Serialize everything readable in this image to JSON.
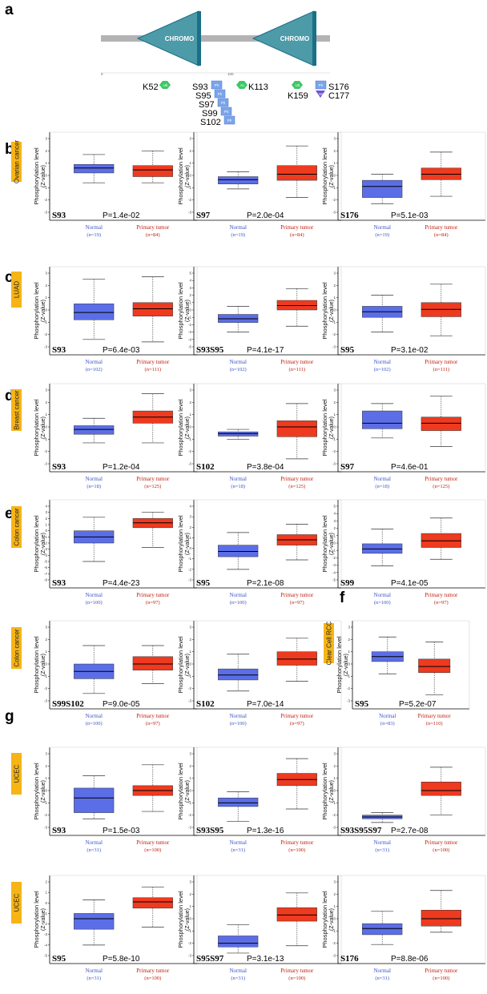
{
  "colors": {
    "normal_box": "#5b6ee8",
    "tumor_box": "#ee3a1f",
    "normal_text": "#3f55c8",
    "tumor_text": "#c0200e",
    "cancer_label_bg": "#f6b417",
    "domain_fill": "#4d9aa9",
    "domain_edge": "#1b6f86",
    "backbone": "#b3b3b3",
    "ub_mod": "#3cc866",
    "ph_mod": "#7ba4ea",
    "ac_mod": "#3cc866",
    "nt_mod": "#6f52d6"
  },
  "schematic": {
    "panel_letter": "a",
    "domain_label": "CHROMO",
    "ruler": [
      "0",
      "100"
    ],
    "sites": [
      {
        "mod": "Ub",
        "label": "K52"
      },
      {
        "mod": "Ph",
        "label": "S93"
      },
      {
        "mod": "Ph",
        "label": "S95"
      },
      {
        "mod": "Ph",
        "label": "S97"
      },
      {
        "mod": "Ph",
        "label": "S99"
      },
      {
        "mod": "Ph",
        "label": "S102"
      },
      {
        "mod": "Ac",
        "label": "K113"
      },
      {
        "mod": "Ub",
        "label": "K159"
      },
      {
        "mod": "Ph",
        "label": "S176"
      },
      {
        "mod": "Nt",
        "label": "C177"
      }
    ]
  },
  "ylabel_line1": "Phosphorylation level",
  "ylabel_line2": "(Z-value)",
  "groups": {
    "normal": "Normal",
    "tumor": "Primary tumor"
  },
  "panel_letters": [
    "b",
    "c",
    "d",
    "e",
    "f",
    "g"
  ],
  "cancer_labels": {
    "b": "Ovarian cancer",
    "c": "LUAD",
    "d": "Breast cancer",
    "e1": "Colon cancer",
    "e2": "Colon cancer",
    "f": "Clear Cell RCC",
    "g1": "UCEC",
    "g2": "UCEC"
  },
  "chart_data": [
    {
      "type": "box",
      "cancer": "Ovarian cancer",
      "site": "S93",
      "pvalue": "P=1.4e-02",
      "ylim": [
        -3,
        3
      ],
      "normal": {
        "n": "(n=19)",
        "whisker_low": -0.6,
        "q1": 0.2,
        "median": 0.6,
        "q3": 0.9,
        "whisker_high": 1.7
      },
      "tumor": {
        "n": "(n=84)",
        "whisker_low": -0.6,
        "q1": -0.1,
        "median": 0.45,
        "q3": 0.8,
        "whisker_high": 2.0
      }
    },
    {
      "type": "box",
      "cancer": "Ovarian cancer",
      "site": "S97",
      "pvalue": "P=2.0e-04",
      "ylim": [
        -3,
        3
      ],
      "normal": {
        "n": "(n=19)",
        "whisker_low": -1.1,
        "q1": -0.7,
        "median": -0.35,
        "q3": -0.1,
        "whisker_high": 0.3
      },
      "tumor": {
        "n": "(n=84)",
        "whisker_low": -1.8,
        "q1": -0.4,
        "median": 0.1,
        "q3": 0.8,
        "whisker_high": 2.4
      }
    },
    {
      "type": "box",
      "cancer": "Ovarian cancer",
      "site": "S176",
      "pvalue": "P=5.1e-03",
      "ylim": [
        -3,
        3
      ],
      "normal": {
        "n": "(n=19)",
        "whisker_low": -2.3,
        "q1": -1.8,
        "median": -0.9,
        "q3": -0.4,
        "whisker_high": 0.1
      },
      "tumor": {
        "n": "(n=84)",
        "whisker_low": -1.7,
        "q1": -0.35,
        "median": 0.1,
        "q3": 0.6,
        "whisker_high": 1.9
      }
    },
    {
      "type": "box",
      "cancer": "LUAD",
      "site": "S93",
      "pvalue": "P=6.4e-03",
      "ylim": [
        -3,
        3
      ],
      "normal": {
        "n": "(n=102)",
        "whisker_low": -2.4,
        "q1": -0.8,
        "median": -0.2,
        "q3": 0.5,
        "whisker_high": 2.5
      },
      "tumor": {
        "n": "(n=111)",
        "whisker_low": -2.6,
        "q1": -0.5,
        "median": 0.1,
        "q3": 0.6,
        "whisker_high": 2.7
      }
    },
    {
      "type": "box",
      "cancer": "LUAD",
      "site": "S93S95",
      "pvalue": "P=4.1e-17",
      "ylim": [
        -5,
        5
      ],
      "normal": {
        "n": "(n=102)",
        "whisker_low": -3.0,
        "q1": -1.7,
        "median": -1.2,
        "q3": -0.6,
        "whisker_high": 0.5
      },
      "tumor": {
        "n": "(n=111)",
        "whisker_low": -2.2,
        "q1": 0.0,
        "median": 0.6,
        "q3": 1.3,
        "whisker_high": 2.9
      }
    },
    {
      "type": "box",
      "cancer": "LUAD",
      "site": "S95",
      "pvalue": "P=3.1e-02",
      "ylim": [
        -3,
        3
      ],
      "normal": {
        "n": "(n=102)",
        "whisker_low": -1.8,
        "q1": -0.6,
        "median": -0.15,
        "q3": 0.3,
        "whisker_high": 1.2
      },
      "tumor": {
        "n": "(n=111)",
        "whisker_low": -2.1,
        "q1": -0.55,
        "median": 0.05,
        "q3": 0.6,
        "whisker_high": 2.1
      }
    },
    {
      "type": "box",
      "cancer": "Breast cancer",
      "site": "S93",
      "pvalue": "P=1.2e-04",
      "ylim": [
        -3,
        3
      ],
      "normal": {
        "n": "(n=18)",
        "whisker_low": -1.3,
        "q1": -0.6,
        "median": -0.2,
        "q3": 0.1,
        "whisker_high": 0.7
      },
      "tumor": {
        "n": "(n=125)",
        "whisker_low": -1.3,
        "q1": 0.3,
        "median": 0.8,
        "q3": 1.3,
        "whisker_high": 2.7
      }
    },
    {
      "type": "box",
      "cancer": "Breast cancer",
      "site": "S102",
      "pvalue": "P=3.8e-04",
      "ylim": [
        -3,
        3
      ],
      "normal": {
        "n": "(n=18)",
        "whisker_low": -1.0,
        "q1": -0.75,
        "median": -0.55,
        "q3": -0.4,
        "whisker_high": -0.2
      },
      "tumor": {
        "n": "(n=125)",
        "whisker_low": -2.6,
        "q1": -0.8,
        "median": 0.0,
        "q3": 0.5,
        "whisker_high": 1.9
      }
    },
    {
      "type": "box",
      "cancer": "Breast cancer",
      "site": "S97",
      "pvalue": "P=4.6e-01",
      "ylim": [
        -3,
        3
      ],
      "normal": {
        "n": "(n=18)",
        "whisker_low": -0.9,
        "q1": -0.15,
        "median": 0.3,
        "q3": 1.3,
        "whisker_high": 1.9
      },
      "tumor": {
        "n": "(n=125)",
        "whisker_low": -1.6,
        "q1": -0.3,
        "median": 0.3,
        "q3": 0.8,
        "whisker_high": 2.5
      }
    },
    {
      "type": "box",
      "cancer": "Colon cancer",
      "site": "S93",
      "pvalue": "P=4.4e-23",
      "ylim": [
        -8,
        4
      ],
      "normal": {
        "n": "(n=100)",
        "whisker_low": -5.0,
        "q1": -2.0,
        "median": -1.0,
        "q3": 0.0,
        "whisker_high": 2.2
      },
      "tumor": {
        "n": "(n=97)",
        "whisker_low": -2.7,
        "q1": 0.5,
        "median": 1.3,
        "q3": 2.0,
        "whisker_high": 3.0
      }
    },
    {
      "type": "box",
      "cancer": "Colon cancer",
      "site": "S95",
      "pvalue": "P=2.1e-08",
      "ylim": [
        -3,
        4
      ],
      "normal": {
        "n": "(n=100)",
        "whisker_low": -2.0,
        "q1": -0.8,
        "median": -0.3,
        "q3": 0.3,
        "whisker_high": 1.5
      },
      "tumor": {
        "n": "(n=97)",
        "whisker_low": -1.1,
        "q1": 0.3,
        "median": 0.8,
        "q3": 1.3,
        "whisker_high": 2.3
      }
    },
    {
      "type": "box",
      "cancer": "Colon cancer",
      "site": "S99",
      "pvalue": "P=4.1e-05",
      "ylim": [
        -5,
        5
      ],
      "normal": {
        "n": "(n=100)",
        "whisker_low": -3.1,
        "q1": -1.4,
        "median": -0.8,
        "q3": -0.1,
        "whisker_high": 1.9
      },
      "tumor": {
        "n": "(n=97)",
        "whisker_low": -2.2,
        "q1": -0.6,
        "median": 0.3,
        "q3": 1.3,
        "whisker_high": 3.4
      }
    },
    {
      "type": "box",
      "cancer": "Colon cancer",
      "site": "S99S102",
      "pvalue": "P=9.0e-05",
      "ylim": [
        -3,
        3
      ],
      "normal": {
        "n": "(n=100)",
        "whisker_low": -2.4,
        "q1": -1.2,
        "median": -0.6,
        "q3": 0.0,
        "whisker_high": 1.5
      },
      "tumor": {
        "n": "(n=97)",
        "whisker_low": -1.6,
        "q1": -0.5,
        "median": 0.0,
        "q3": 0.6,
        "whisker_high": 1.5
      }
    },
    {
      "type": "box",
      "cancer": "Colon cancer",
      "site": "S102",
      "pvalue": "P=7.0e-14",
      "ylim": [
        -3,
        3
      ],
      "normal": {
        "n": "(n=100)",
        "whisker_low": -2.2,
        "q1": -1.3,
        "median": -0.9,
        "q3": -0.4,
        "whisker_high": 0.8
      },
      "tumor": {
        "n": "(n=97)",
        "whisker_low": -1.4,
        "q1": -0.1,
        "median": 0.4,
        "q3": 1.0,
        "whisker_high": 2.1
      }
    },
    {
      "type": "box",
      "cancer": "Clear Cell RCC",
      "site": "S95",
      "pvalue": "P=5.2e-07",
      "ylim": [
        -3,
        3
      ],
      "normal": {
        "n": "(n=83)",
        "whisker_low": -0.8,
        "q1": 0.2,
        "median": 0.6,
        "q3": 1.0,
        "whisker_high": 2.2
      },
      "tumor": {
        "n": "(n=110)",
        "whisker_low": -2.5,
        "q1": -0.7,
        "median": -0.2,
        "q3": 0.4,
        "whisker_high": 1.8
      }
    },
    {
      "type": "box",
      "cancer": "UCEC",
      "site": "S93",
      "pvalue": "P=1.5e-03",
      "ylim": [
        -3,
        3
      ],
      "normal": {
        "n": "(n=31)",
        "whisker_low": -2.3,
        "q1": -1.8,
        "median": -0.6,
        "q3": 0.2,
        "whisker_high": 1.2
      },
      "tumor": {
        "n": "(n=100)",
        "whisker_low": -1.7,
        "q1": -0.4,
        "median": 0.0,
        "q3": 0.4,
        "whisker_high": 2.1
      }
    },
    {
      "type": "box",
      "cancer": "UCEC",
      "site": "S93S95",
      "pvalue": "P=1.3e-16",
      "ylim": [
        -3,
        3
      ],
      "normal": {
        "n": "(n=31)",
        "whisker_low": -2.5,
        "q1": -1.3,
        "median": -1.0,
        "q3": -0.6,
        "whisker_high": -0.1
      },
      "tumor": {
        "n": "(n=100)",
        "whisker_low": -1.5,
        "q1": 0.4,
        "median": 0.9,
        "q3": 1.4,
        "whisker_high": 2.6
      }
    },
    {
      "type": "box",
      "cancer": "UCEC",
      "site": "S93S95S97",
      "pvalue": "P=2.7e-08",
      "ylim": [
        -3,
        3
      ],
      "normal": {
        "n": "(n=31)",
        "whisker_low": -2.6,
        "q1": -2.3,
        "median": -2.15,
        "q3": -2.0,
        "whisker_high": -1.8
      },
      "tumor": {
        "n": "(n=100)",
        "whisker_low": -2.0,
        "q1": -0.4,
        "median": 0.0,
        "q3": 0.7,
        "whisker_high": 1.9
      }
    },
    {
      "type": "box",
      "cancer": "UCEC",
      "site": "S95",
      "pvalue": "P=5.8e-10",
      "ylim": [
        -5,
        2
      ],
      "normal": {
        "n": "(n=31)",
        "whisker_low": -4.0,
        "q1": -2.5,
        "median": -1.5,
        "q3": -1.0,
        "whisker_high": 0.3
      },
      "tumor": {
        "n": "(n=100)",
        "whisker_low": -2.3,
        "q1": -0.5,
        "median": 0.1,
        "q3": 0.5,
        "whisker_high": 1.5
      }
    },
    {
      "type": "box",
      "cancer": "UCEC",
      "site": "S95S97",
      "pvalue": "P=3.1e-13",
      "ylim": [
        -3,
        3
      ],
      "normal": {
        "n": "(n=31)",
        "whisker_low": -2.8,
        "q1": -2.3,
        "median": -2.0,
        "q3": -1.4,
        "whisker_high": -0.5
      },
      "tumor": {
        "n": "(n=100)",
        "whisker_low": -2.2,
        "q1": -0.2,
        "median": 0.3,
        "q3": 0.9,
        "whisker_high": 2.1
      }
    },
    {
      "type": "box",
      "cancer": "UCEC",
      "site": "S176",
      "pvalue": "P=8.8e-06",
      "ylim": [
        -3,
        3
      ],
      "normal": {
        "n": "(n=31)",
        "whisker_low": -2.1,
        "q1": -1.3,
        "median": -0.8,
        "q3": -0.4,
        "whisker_high": 0.6
      },
      "tumor": {
        "n": "(n=100)",
        "whisker_low": -1.1,
        "q1": -0.6,
        "median": 0.0,
        "q3": 0.7,
        "whisker_high": 2.3
      }
    }
  ]
}
